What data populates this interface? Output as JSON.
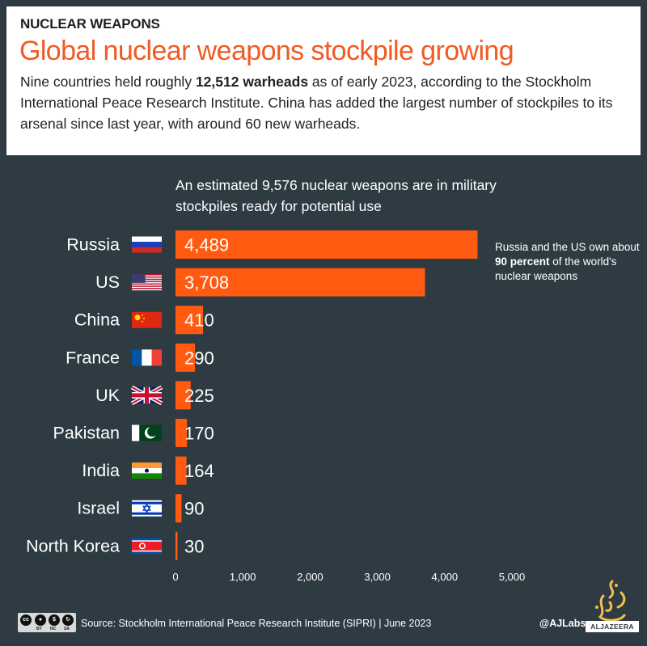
{
  "header": {
    "kicker": "NUCLEAR WEAPONS",
    "headline": "Global nuclear weapons stockpile growing",
    "intro_parts": {
      "a": "Nine countries held roughly ",
      "b": "12,512 warheads",
      "c": " as of early 2023, according to the Stockholm International Peace Research Institute. China has added the largest number of stockpiles to its arsenal since last year, with around 60 new warheads."
    }
  },
  "chart_note": "An estimated 9,576 nuclear weapons are in military stockpiles ready for potential use",
  "side_note": {
    "a": "Russia and the US own about ",
    "b": "90 percent",
    "c": " of the world's nuclear weapons"
  },
  "chart_data": {
    "type": "bar",
    "orientation": "horizontal",
    "categories": [
      "Russia",
      "US",
      "China",
      "France",
      "UK",
      "Pakistan",
      "India",
      "Israel",
      "North Korea"
    ],
    "values": [
      4489,
      3708,
      410,
      290,
      225,
      170,
      164,
      90,
      30
    ],
    "value_labels": [
      "4,489",
      "3,708",
      "410",
      "290",
      "225",
      "170",
      "164",
      "90",
      "30"
    ],
    "xlim": [
      0,
      5000
    ],
    "x_ticks": [
      0,
      1000,
      2000,
      3000,
      4000,
      5000
    ],
    "x_tick_labels": [
      "0",
      "1,000",
      "2,000",
      "3,000",
      "4,000",
      "5,000"
    ],
    "bar_color": "#ff5a10",
    "grid": false,
    "legend": "none"
  },
  "flags": [
    "russia-flag-icon",
    "us-flag-icon",
    "china-flag-icon",
    "france-flag-icon",
    "uk-flag-icon",
    "pakistan-flag-icon",
    "india-flag-icon",
    "israel-flag-icon",
    "north-korea-flag-icon"
  ],
  "footer": {
    "cc_labels": [
      "BY",
      "NC",
      "SA"
    ],
    "source": "Source: Stockholm International Peace Research Institute (SIPRI)  |  June 2023",
    "handle": "@AJLabs",
    "brand": "ALJAZEERA"
  }
}
